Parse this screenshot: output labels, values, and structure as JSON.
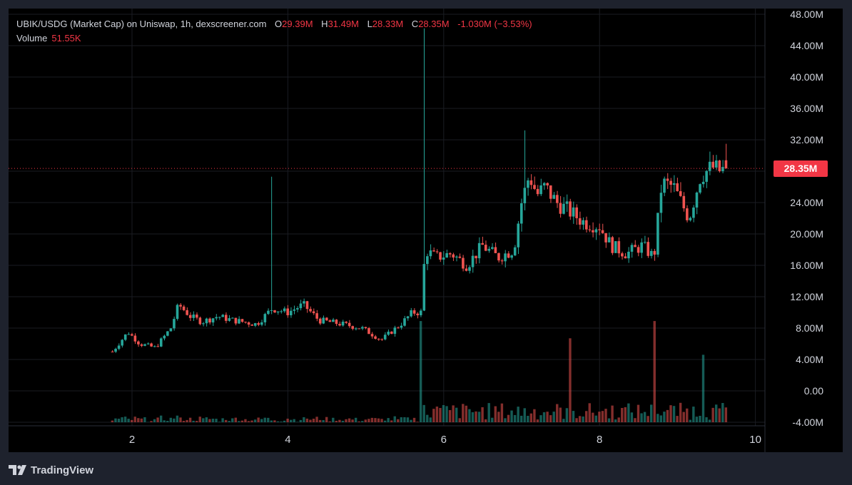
{
  "legend": {
    "title": "UBIK/USDG (Market Cap) on Uniswap, 1h, dexscreener.com",
    "o_label": "O",
    "o_value": "29.39M",
    "h_label": "H",
    "h_value": "31.49M",
    "l_label": "L",
    "l_value": "28.33M",
    "c_label": "C",
    "c_value": "28.35M",
    "change": "-1.030M (−3.53%)",
    "volume_label": "Volume",
    "volume_value": "51.55K"
  },
  "brand": {
    "name": "TradingView",
    "icon": "tradingview-logo-icon"
  },
  "colors": {
    "up": "#26a69a",
    "down": "#ef5350",
    "badge": "#f23645",
    "background": "#000000",
    "text": "#d1d4dc"
  },
  "chart_data": {
    "type": "candlestick",
    "interval": "1h",
    "y_axis": {
      "ticks": [
        "48.00M",
        "44.00M",
        "40.00M",
        "36.00M",
        "32.00M",
        "28.00M",
        "24.00M",
        "20.00M",
        "16.00M",
        "12.00M",
        "8.00M",
        "4.00M",
        "0.00",
        "-4.00M"
      ],
      "range": [
        -4,
        48
      ],
      "unit": "M"
    },
    "x_axis": {
      "ticks": [
        "2",
        "4",
        "6",
        "8",
        "10"
      ],
      "range": [
        1.75,
        9.62
      ]
    },
    "last_price": {
      "label": "28.35M",
      "value": 28.35,
      "line": "dotted"
    },
    "grid": true,
    "series": [
      {
        "name": "Market Cap",
        "t_start": 1.75,
        "t_end": 9.62,
        "anchors": [
          [
            1.75,
            5.0
          ],
          [
            1.95,
            7.5
          ],
          [
            2.1,
            6.0
          ],
          [
            2.3,
            5.5
          ],
          [
            2.5,
            8.0
          ],
          [
            2.6,
            11.0
          ],
          [
            2.75,
            9.5
          ],
          [
            2.9,
            8.8
          ],
          [
            3.1,
            9.5
          ],
          [
            3.3,
            9.0
          ],
          [
            3.6,
            8.5
          ],
          [
            3.8,
            10.5
          ],
          [
            4.0,
            10.0
          ],
          [
            4.2,
            11.0
          ],
          [
            4.4,
            9.0
          ],
          [
            4.7,
            8.5
          ],
          [
            4.95,
            8.0
          ],
          [
            5.2,
            6.5
          ],
          [
            5.45,
            8.5
          ],
          [
            5.6,
            10.0
          ],
          [
            5.72,
            10.0
          ],
          [
            5.76,
            18.0
          ],
          [
            5.9,
            17.0
          ],
          [
            6.1,
            17.5
          ],
          [
            6.3,
            16.0
          ],
          [
            6.5,
            18.5
          ],
          [
            6.7,
            17.0
          ],
          [
            6.9,
            18.0
          ],
          [
            7.0,
            24.0
          ],
          [
            7.1,
            27.5
          ],
          [
            7.2,
            25.0
          ],
          [
            7.3,
            26.0
          ],
          [
            7.45,
            24.0
          ],
          [
            7.6,
            23.0
          ],
          [
            7.8,
            21.5
          ],
          [
            8.0,
            21.0
          ],
          [
            8.15,
            18.5
          ],
          [
            8.35,
            17.5
          ],
          [
            8.55,
            18.5
          ],
          [
            8.7,
            17.0
          ],
          [
            8.8,
            26.5
          ],
          [
            8.95,
            26.0
          ],
          [
            9.05,
            24.0
          ],
          [
            9.15,
            22.0
          ],
          [
            9.3,
            27.5
          ],
          [
            9.45,
            28.5
          ],
          [
            9.55,
            28.0
          ],
          [
            9.62,
            28.35
          ]
        ],
        "spikes": [
          {
            "x": 3.78,
            "high": 27.3
          },
          {
            "x": 5.76,
            "high": 46.2
          },
          {
            "x": 7.04,
            "high": 33.2
          }
        ]
      },
      {
        "name": "Volume",
        "type": "bar",
        "notable_bars": [
          {
            "x": 5.72,
            "value": 8.9
          },
          {
            "x": 7.62,
            "value": 6.7
          },
          {
            "x": 8.7,
            "value": 8.9
          },
          {
            "x": 9.35,
            "value": 4.6
          }
        ],
        "baseline": -4.0
      }
    ]
  }
}
